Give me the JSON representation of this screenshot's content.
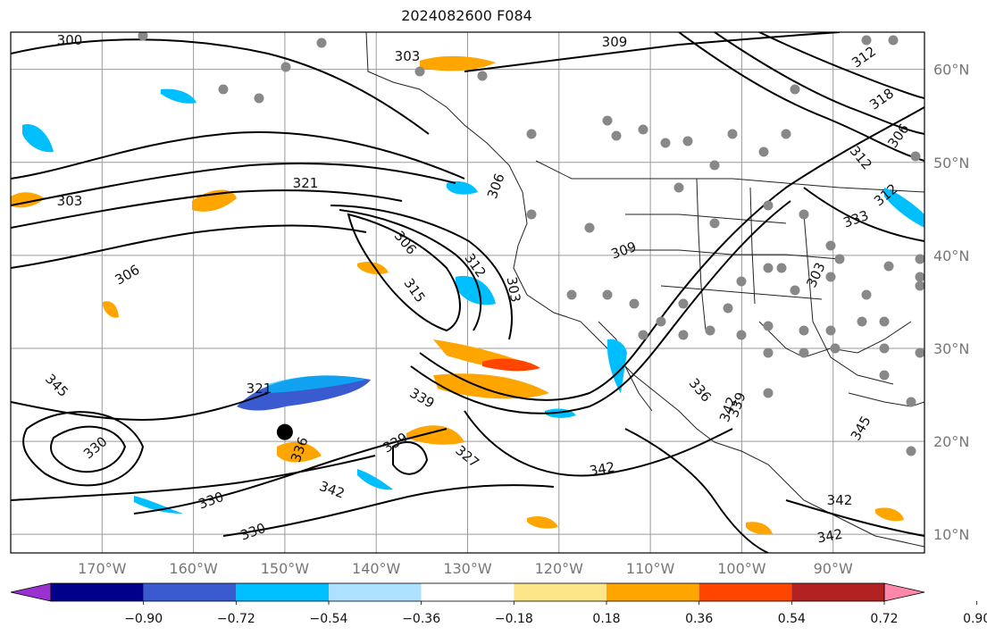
{
  "title": "2024082600 F084",
  "map": {
    "lon_range": [
      -180,
      -80
    ],
    "lat_range": [
      8,
      64
    ],
    "lat_ticks": [
      "60°N",
      "50°N",
      "40°N",
      "30°N",
      "20°N",
      "10°N"
    ],
    "lat_values": [
      60,
      50,
      40,
      30,
      20,
      10
    ],
    "lon_ticks": [
      "170°W",
      "160°W",
      "150°W",
      "140°W",
      "130°W",
      "120°W",
      "110°W",
      "100°W",
      "90°W"
    ],
    "lon_values": [
      -170,
      -160,
      -150,
      -140,
      -130,
      -120,
      -110,
      -100,
      -90
    ],
    "storm_marker": {
      "lon": -150,
      "lat": 21
    },
    "contour_labels": [
      "300",
      "303",
      "309",
      "312",
      "318",
      "306",
      "312",
      "321",
      "303",
      "306",
      "306",
      "312",
      "315",
      "303",
      "306",
      "309",
      "312",
      "303",
      "321",
      "339",
      "330",
      "327",
      "342",
      "339",
      "336",
      "342",
      "330",
      "330",
      "342",
      "342",
      "345",
      "345",
      "339",
      "333",
      "336",
      "342"
    ]
  },
  "colorbar": {
    "ticks": [
      "−0.90",
      "−0.72",
      "−0.54",
      "−0.36",
      "−0.18",
      "0.18",
      "0.36",
      "0.54",
      "0.72",
      "0.90"
    ],
    "colors": [
      "#9b30d0",
      "#00008b",
      "#3a5bd0",
      "#00bfff",
      "#aee0ff",
      "#ffffff",
      "#fde68a",
      "#ffa500",
      "#ff4500",
      "#b22222",
      "#ff88aa"
    ]
  }
}
